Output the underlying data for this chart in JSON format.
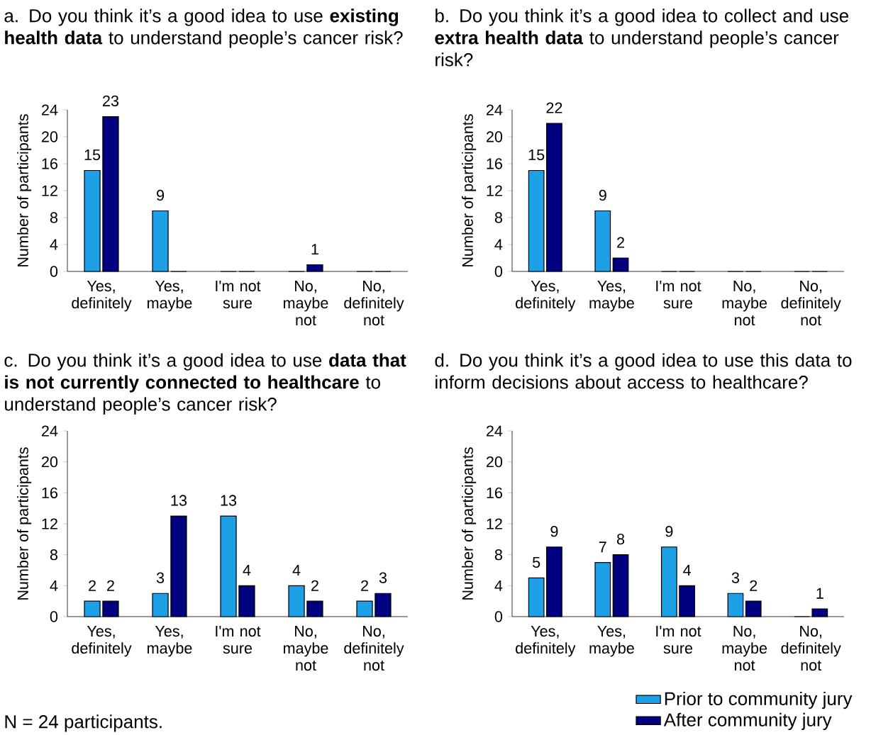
{
  "chart_data": [
    {
      "type": "bar",
      "title": "a. Do you think it’s a good idea to use **existing health data** to understand people’s cancer risk?",
      "ylabel": "Number of participants",
      "categories": [
        "Yes, definitely",
        "Yes, maybe",
        "I'm not sure",
        "No, maybe not",
        "No, definitely not"
      ],
      "ylim": [
        0,
        24
      ],
      "yticks": [
        0,
        4,
        8,
        12,
        16,
        20,
        24
      ],
      "series": [
        {
          "color": "#1ea0e6",
          "values": [
            15,
            9,
            0,
            0,
            0
          ],
          "value_labels": [
            "15",
            "9",
            null,
            null,
            null
          ]
        },
        {
          "color": "#000080",
          "values": [
            23,
            0,
            0,
            1,
            0
          ],
          "value_labels": [
            "23",
            null,
            null,
            "1",
            null
          ]
        }
      ]
    },
    {
      "type": "bar",
      "title": "b. Do you think it’s a good idea to collect and use **extra health data** to understand people’s cancer risk?",
      "ylabel": "Number of participants",
      "categories": [
        "Yes, definitely",
        "Yes, maybe",
        "I'm not sure",
        "No, maybe not",
        "No, definitely not"
      ],
      "ylim": [
        0,
        24
      ],
      "yticks": [
        0,
        4,
        8,
        12,
        16,
        20,
        24
      ],
      "series": [
        {
          "color": "#1ea0e6",
          "values": [
            15,
            9,
            0,
            0,
            0
          ],
          "value_labels": [
            "15",
            "9",
            null,
            null,
            null
          ]
        },
        {
          "color": "#000080",
          "values": [
            22,
            2,
            0,
            0,
            0
          ],
          "value_labels": [
            "22",
            "2",
            null,
            null,
            null
          ]
        }
      ]
    },
    {
      "type": "bar",
      "title": "c. Do you think it’s a good idea to use **data that is not currently connected to healthcare** to understand people’s cancer risk?",
      "ylabel": "Number of participants",
      "categories": [
        "Yes, definitely",
        "Yes, maybe",
        "I'm not sure",
        "No, maybe not",
        "No, definitely not"
      ],
      "ylim": [
        0,
        24
      ],
      "yticks": [
        0,
        4,
        8,
        12,
        16,
        20,
        24
      ],
      "data_labels": true,
      "annotations": [
        "N = 24 participants."
      ],
      "series": [
        {
          "color": "#1ea0e6",
          "values": [
            2,
            3,
            13,
            4,
            2
          ]
        },
        {
          "color": "#000080",
          "values": [
            2,
            13,
            4,
            2,
            3
          ]
        }
      ]
    },
    {
      "type": "bar",
      "title": "d. Do you think it’s a good idea to use this data to inform decisions about access to healthcare?",
      "ylabel": "Number of participants",
      "categories": [
        "Yes, definitely",
        "Yes, maybe",
        "I'm not sure",
        "No, maybe not",
        "No, definitely not"
      ],
      "ylim": [
        0,
        24
      ],
      "yticks": [
        0,
        4,
        8,
        12,
        16,
        20,
        24
      ],
      "legend": "bottom right",
      "series": [
        {
          "name": "Prior to community jury",
          "color": "#1ea0e6",
          "values": [
            5,
            7,
            9,
            3,
            0
          ],
          "value_labels": [
            "5",
            "7",
            "9",
            "3",
            null
          ]
        },
        {
          "name": "After community jury",
          "color": "#000080",
          "values": [
            9,
            8,
            4,
            2,
            1
          ],
          "value_labels": [
            "9",
            "8",
            "4",
            "2",
            "1"
          ]
        }
      ]
    }
  ]
}
